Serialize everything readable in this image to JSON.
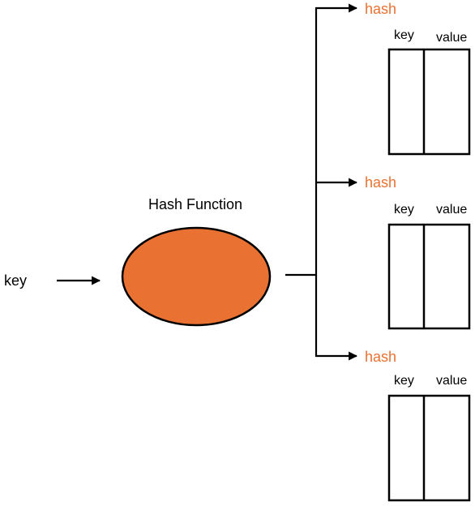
{
  "input_label": "key",
  "function_label": "Hash Function",
  "colors": {
    "ellipse_fill": "#E97132",
    "hash_text": "#E97132",
    "stroke": "#000000"
  },
  "buckets": [
    {
      "hash_label": "hash",
      "key_header": "key",
      "value_header": "value"
    },
    {
      "hash_label": "hash",
      "key_header": "key",
      "value_header": "value"
    },
    {
      "hash_label": "hash",
      "key_header": "key",
      "value_header": "value"
    }
  ]
}
